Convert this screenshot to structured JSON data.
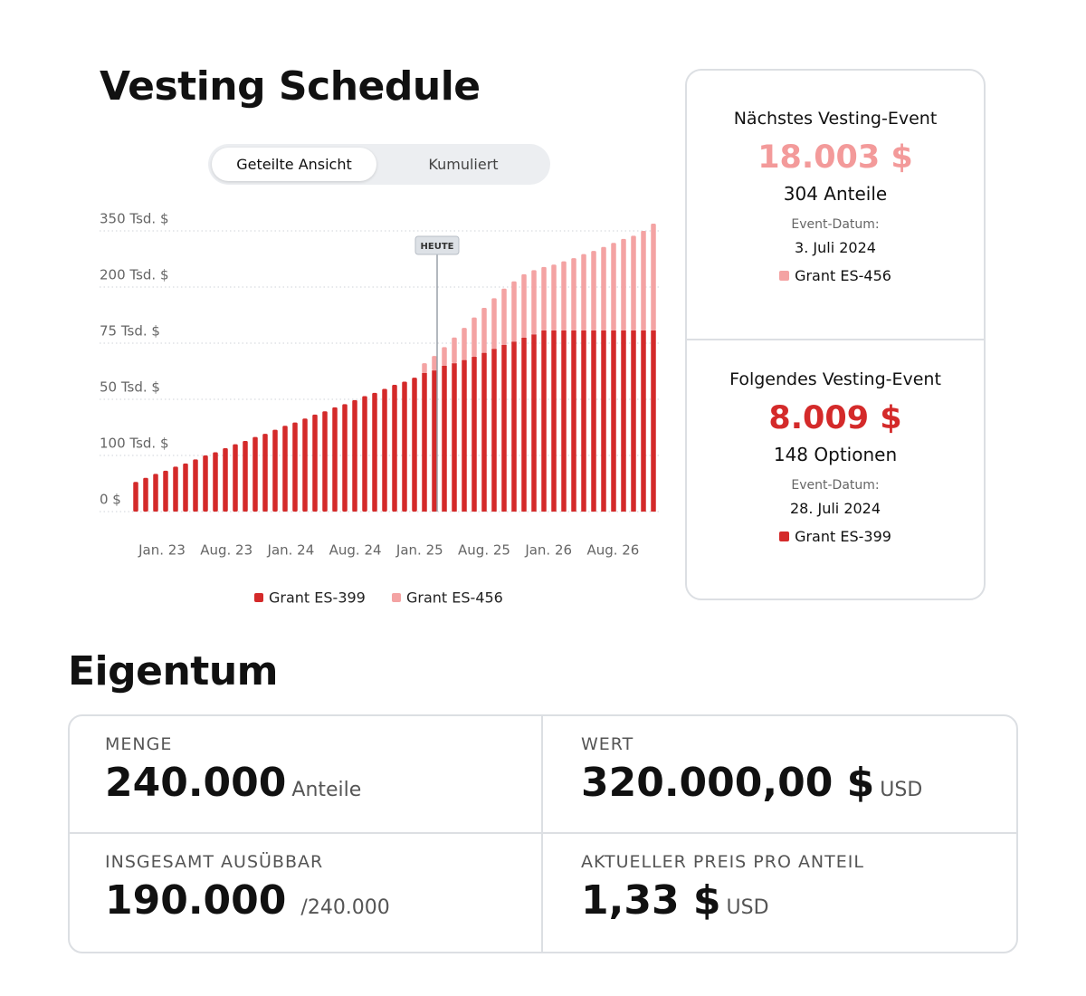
{
  "chart_data": {
    "type": "bar",
    "stacked": true,
    "title": "Vesting Schedule",
    "toggle": [
      "Geteilte Ansicht",
      "Kumuliert"
    ],
    "y_axis_labels": [
      "350 Tsd. $",
      "200 Tsd. $",
      "75 Tsd. $",
      "50 Tsd. $",
      "100 Tsd. $",
      "0 $"
    ],
    "x_axis_labels": [
      "Jan. 23",
      "Aug. 23",
      "Jan. 24",
      "Aug. 24",
      "Jan. 25",
      "Aug. 25",
      "Jan. 26",
      "Aug. 26"
    ],
    "ylim": [
      0,
      350
    ],
    "annotation": "HEUTE",
    "series": [
      {
        "name": "Grant ES-399",
        "color": "#d42a2a",
        "values": [
          37,
          42,
          47,
          51,
          56,
          60,
          65,
          70,
          74,
          79,
          84,
          88,
          93,
          97,
          102,
          107,
          111,
          116,
          121,
          125,
          130,
          134,
          139,
          144,
          148,
          153,
          158,
          162,
          167,
          173,
          176,
          182,
          185,
          189,
          193,
          198,
          203,
          208,
          212,
          217,
          221,
          226,
          226,
          226,
          226,
          226,
          226,
          226,
          226,
          226,
          226,
          226,
          226
        ]
      },
      {
        "name": "Grant ES-456",
        "color": "#f4a3a3",
        "values": [
          null,
          null,
          null,
          null,
          null,
          null,
          null,
          null,
          null,
          null,
          null,
          null,
          null,
          null,
          null,
          null,
          null,
          null,
          null,
          null,
          null,
          null,
          null,
          null,
          null,
          null,
          null,
          null,
          null,
          12,
          18,
          23,
          32,
          40,
          49,
          56,
          63,
          70,
          75,
          79,
          80,
          79,
          82,
          86,
          90,
          95,
          99,
          104,
          109,
          114,
          118,
          124,
          133
        ]
      }
    ]
  },
  "next_events": [
    {
      "title": "Nächstes Vesting-Event",
      "amount": "18.003 $",
      "units": "304 Anteile",
      "date_label": "Event-Datum:",
      "date": "3. Juli 2024",
      "grant": "Grant ES-456"
    },
    {
      "title": "Folgendes Vesting-Event",
      "amount": "8.009 $",
      "units": "148 Optionen",
      "date_label": "Event-Datum:",
      "date": "28. Juli 2024",
      "grant": "Grant ES-399"
    }
  ],
  "ownership": {
    "title": "Eigentum",
    "cells": [
      {
        "label": "MENGE",
        "value": "240.000",
        "unit": "Anteile"
      },
      {
        "label": "WERT",
        "value": "320.000,00 $",
        "unit": "USD"
      },
      {
        "label": "INSGESAMT AUSÜBBAR",
        "value": "190.000",
        "unit": "/240.000"
      },
      {
        "label": "AKTUELLER PREIS PRO ANTEIL",
        "value": "1,33 $",
        "unit": "USD"
      }
    ]
  }
}
